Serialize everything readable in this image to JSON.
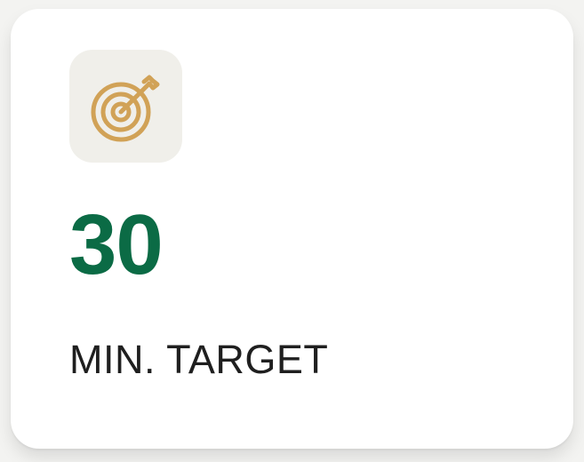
{
  "stat": {
    "value": "30",
    "label": "MIN. TARGET",
    "icon": "target-icon"
  },
  "colors": {
    "value_green": "#0b6b45",
    "icon_gold": "#d1a257",
    "tile_bg": "#f0efea",
    "text_dark": "#1f1f1f"
  }
}
